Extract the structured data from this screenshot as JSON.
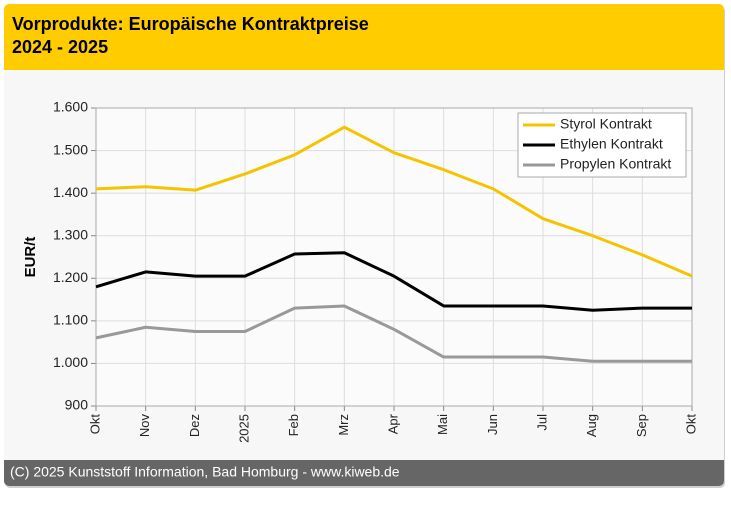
{
  "chart_data": {
    "type": "line",
    "title": "Vorprodukte: Europäische Kontraktpreise",
    "subtitle": "2024 - 2025",
    "y_label": "EUR/t",
    "source": "(C) 2025 Kunststoff Information, Bad Homburg - www.kiweb.de",
    "categories": [
      "Okt",
      "Nov",
      "Dez",
      "2025",
      "Feb",
      "Mrz",
      "Apr",
      "Mai",
      "Jun",
      "Jul",
      "Aug",
      "Sep",
      "Okt"
    ],
    "series": [
      {
        "name": "Styrol Kontrakt",
        "color": "#f5c400",
        "values": [
          1410,
          1415,
          1407,
          1445,
          1490,
          1555,
          1495,
          1455,
          1410,
          1340,
          1300,
          1255,
          1205
        ]
      },
      {
        "name": "Ethylen Kontrakt",
        "color": "#000000",
        "values": [
          1180,
          1215,
          1205,
          1205,
          1257,
          1260,
          1205,
          1135,
          1135,
          1135,
          1125,
          1130,
          1130
        ]
      },
      {
        "name": "Propylen Kontrakt",
        "color": "#999999",
        "values": [
          1060,
          1085,
          1075,
          1075,
          1130,
          1135,
          1080,
          1015,
          1015,
          1015,
          1005,
          1005,
          1005
        ]
      }
    ],
    "ylim": [
      900,
      1600
    ],
    "yticks": [
      900,
      {
        "value": 1000,
        "label": "1.000"
      },
      {
        "value": 1100,
        "label": "1.100"
      },
      {
        "value": 1200,
        "label": "1.200"
      },
      {
        "value": 1300,
        "label": "1.300"
      },
      {
        "value": 1400,
        "label": "1.400"
      },
      {
        "value": 1500,
        "label": "1.500"
      },
      {
        "value": 1600,
        "label": "1.600"
      }
    ],
    "grid": true,
    "legend_position": "top-right"
  }
}
